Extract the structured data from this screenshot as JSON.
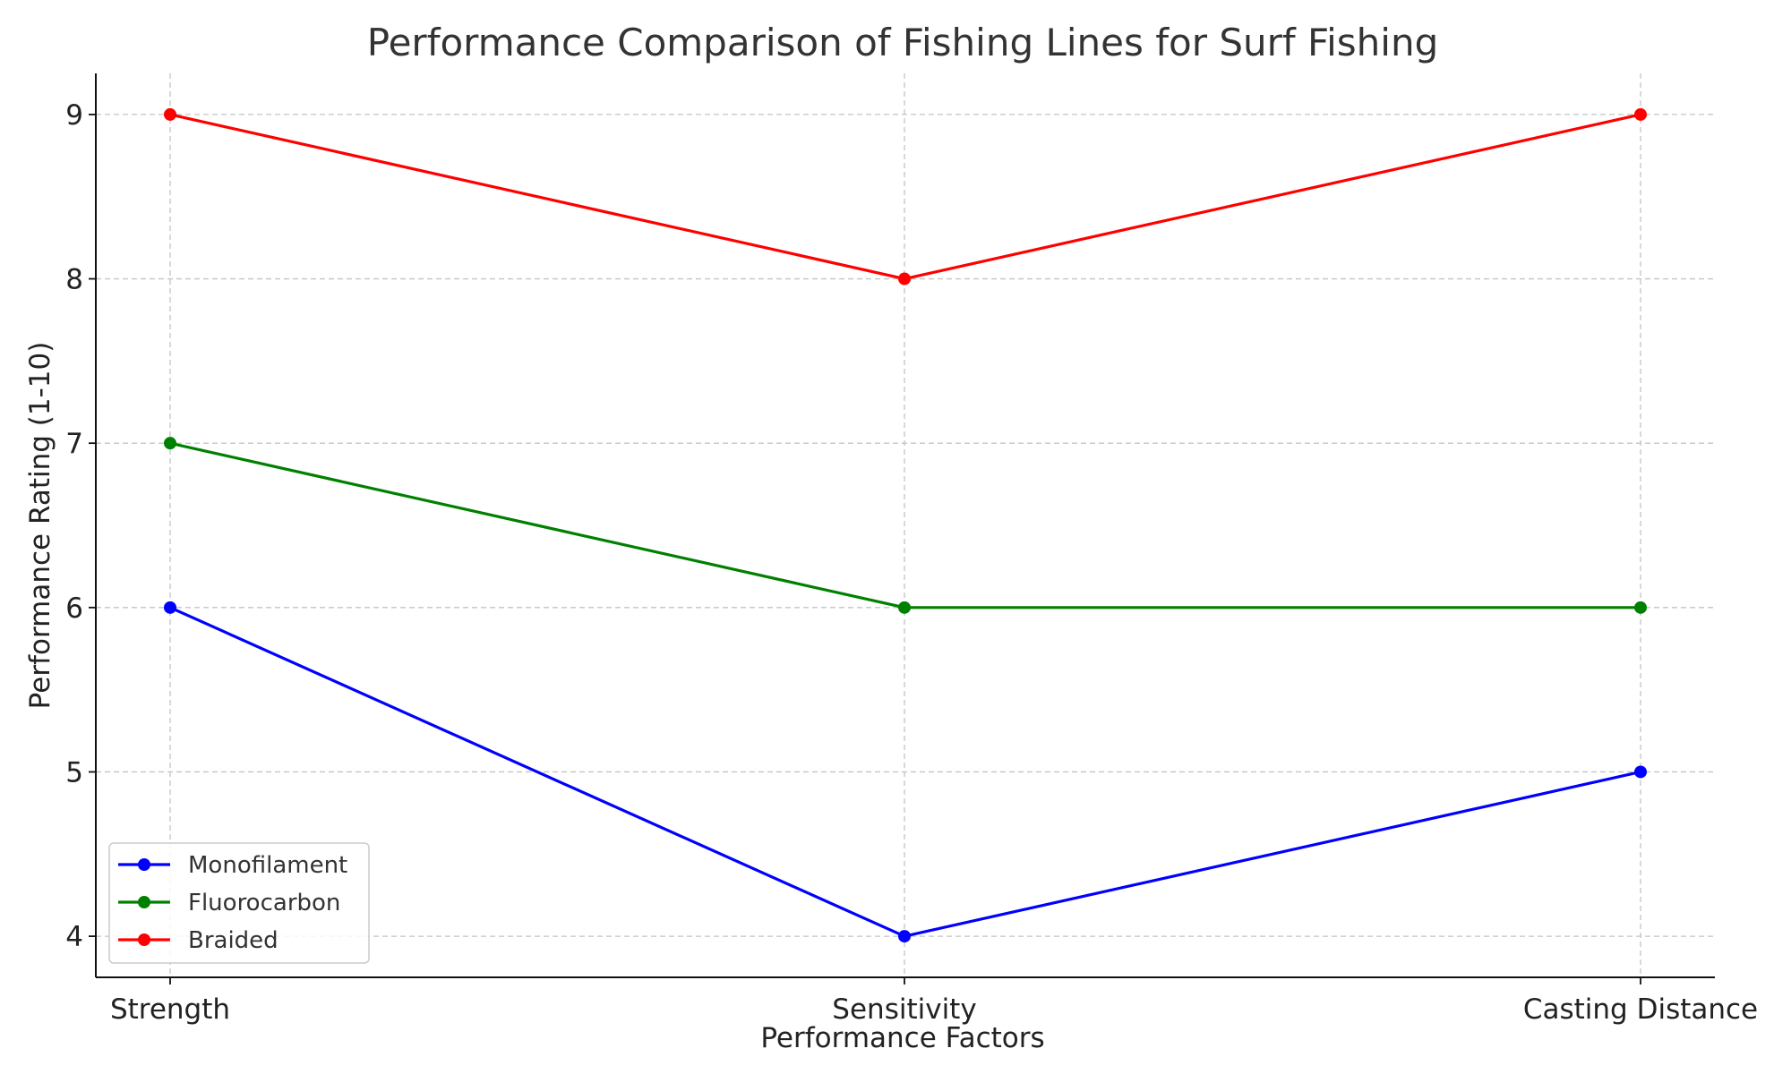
{
  "chart_data": {
    "type": "line",
    "title": "Performance Comparison of Fishing Lines for Surf Fishing",
    "xlabel": "Performance Factors",
    "ylabel": "Performance Rating (1-10)",
    "categories": [
      "Strength",
      "Sensitivity",
      "Casting Distance"
    ],
    "yticks": [
      4,
      5,
      6,
      7,
      8,
      9
    ],
    "ylim": [
      3.75,
      9.25
    ],
    "grid": true,
    "legend_position": "lower-left",
    "series": [
      {
        "name": "Monofilament",
        "color": "#0000ff",
        "values": [
          6,
          4,
          5
        ]
      },
      {
        "name": "Fluorocarbon",
        "color": "#008000",
        "values": [
          7,
          6,
          6
        ]
      },
      {
        "name": "Braided",
        "color": "#ff0000",
        "values": [
          9,
          8,
          9
        ]
      }
    ]
  }
}
